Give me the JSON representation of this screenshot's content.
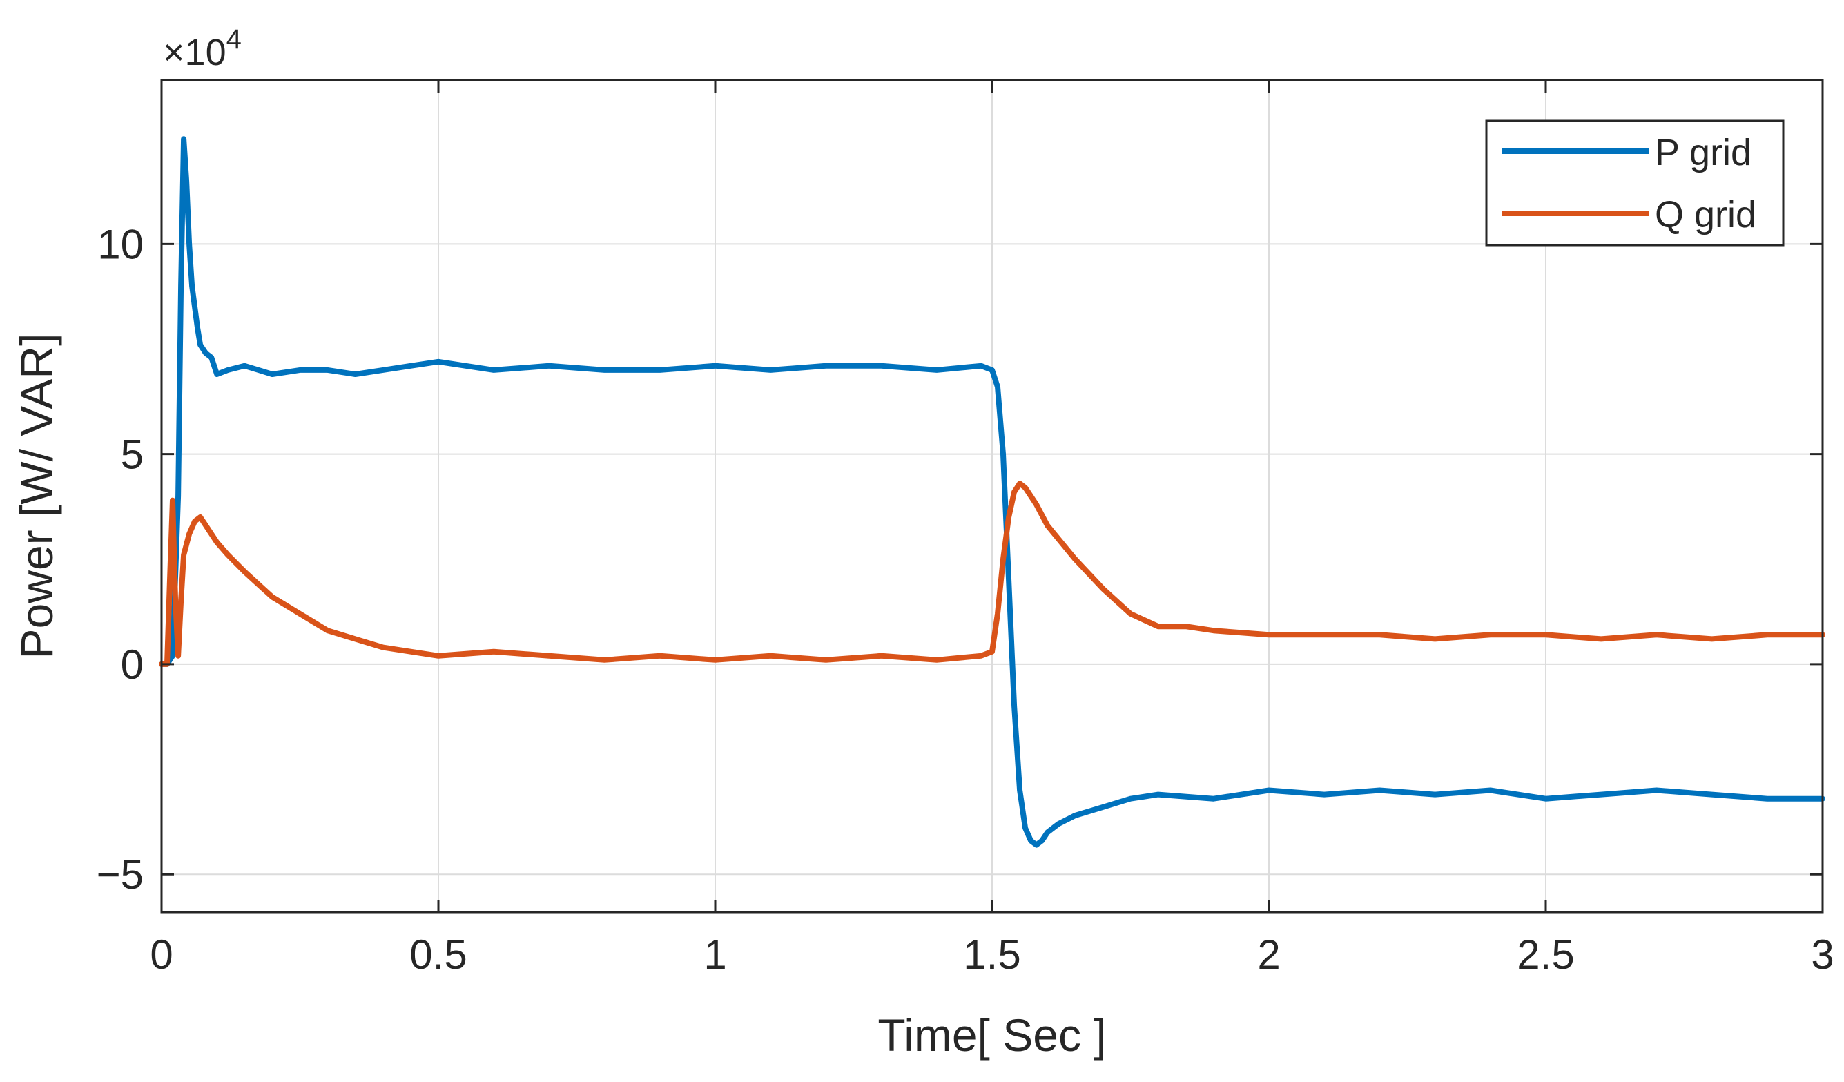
{
  "chart_data": {
    "type": "line",
    "title": "",
    "xlabel": "Time[ Sec ]",
    "ylabel": "Power [W/ VAR]",
    "y_exponent_label": "×10",
    "y_exponent_power": "4",
    "xlim": [
      0,
      3
    ],
    "ylim": [
      -5.9,
      13.9
    ],
    "y_scale_multiplier": 10000,
    "grid": true,
    "legend_position": "top-right",
    "x_ticks": [
      0,
      0.5,
      1,
      1.5,
      2,
      2.5,
      3
    ],
    "x_tick_labels": [
      "0",
      "0.5",
      "1",
      "1.5",
      "2",
      "2.5",
      "3"
    ],
    "y_ticks": [
      -5,
      0,
      5,
      10
    ],
    "y_tick_labels": [
      "−5",
      "0",
      "5",
      "10"
    ],
    "series": [
      {
        "name": "P grid",
        "color": "#0072BD",
        "x": [
          0,
          0.01,
          0.02,
          0.03,
          0.035,
          0.04,
          0.045,
          0.05,
          0.055,
          0.06,
          0.065,
          0.07,
          0.08,
          0.09,
          0.1,
          0.12,
          0.15,
          0.2,
          0.25,
          0.3,
          0.35,
          0.4,
          0.45,
          0.5,
          0.6,
          0.7,
          0.8,
          0.9,
          1.0,
          1.1,
          1.2,
          1.3,
          1.4,
          1.48,
          1.5,
          1.51,
          1.52,
          1.53,
          1.54,
          1.55,
          1.56,
          1.57,
          1.58,
          1.59,
          1.6,
          1.62,
          1.65,
          1.7,
          1.75,
          1.8,
          1.9,
          2.0,
          2.1,
          2.2,
          2.3,
          2.4,
          2.5,
          2.6,
          2.7,
          2.8,
          2.9,
          3.0
        ],
        "values": [
          0,
          0,
          0.2,
          4.0,
          9.0,
          12.5,
          11.5,
          10.0,
          9.0,
          8.5,
          8.0,
          7.6,
          7.4,
          7.3,
          6.9,
          7.0,
          7.1,
          6.9,
          7.0,
          7.0,
          6.9,
          7.0,
          7.1,
          7.2,
          7.0,
          7.1,
          7.0,
          7.0,
          7.1,
          7.0,
          7.1,
          7.1,
          7.0,
          7.1,
          7.0,
          6.6,
          5.0,
          2.0,
          -1.0,
          -3.0,
          -3.9,
          -4.2,
          -4.3,
          -4.2,
          -4.0,
          -3.8,
          -3.6,
          -3.4,
          -3.2,
          -3.1,
          -3.2,
          -3.0,
          -3.1,
          -3.0,
          -3.1,
          -3.0,
          -3.2,
          -3.1,
          -3.0,
          -3.1,
          -3.2,
          -3.2
        ]
      },
      {
        "name": "Q grid",
        "color": "#D95319",
        "x": [
          0,
          0.01,
          0.015,
          0.02,
          0.025,
          0.03,
          0.035,
          0.04,
          0.05,
          0.06,
          0.07,
          0.08,
          0.1,
          0.12,
          0.15,
          0.2,
          0.25,
          0.3,
          0.35,
          0.4,
          0.45,
          0.5,
          0.6,
          0.7,
          0.8,
          0.9,
          1.0,
          1.1,
          1.2,
          1.3,
          1.4,
          1.48,
          1.5,
          1.51,
          1.52,
          1.53,
          1.54,
          1.55,
          1.56,
          1.58,
          1.6,
          1.65,
          1.7,
          1.75,
          1.8,
          1.85,
          1.9,
          2.0,
          2.1,
          2.2,
          2.3,
          2.4,
          2.5,
          2.6,
          2.7,
          2.8,
          2.9,
          3.0
        ],
        "values": [
          0,
          0,
          2.0,
          3.9,
          1.5,
          0.2,
          1.5,
          2.6,
          3.1,
          3.4,
          3.5,
          3.3,
          2.9,
          2.6,
          2.2,
          1.6,
          1.2,
          0.8,
          0.6,
          0.4,
          0.3,
          0.2,
          0.3,
          0.2,
          0.1,
          0.2,
          0.1,
          0.2,
          0.1,
          0.2,
          0.1,
          0.2,
          0.3,
          1.2,
          2.5,
          3.5,
          4.1,
          4.3,
          4.2,
          3.8,
          3.3,
          2.5,
          1.8,
          1.2,
          0.9,
          0.9,
          0.8,
          0.7,
          0.7,
          0.7,
          0.6,
          0.7,
          0.7,
          0.6,
          0.7,
          0.6,
          0.7,
          0.7
        ]
      }
    ]
  }
}
